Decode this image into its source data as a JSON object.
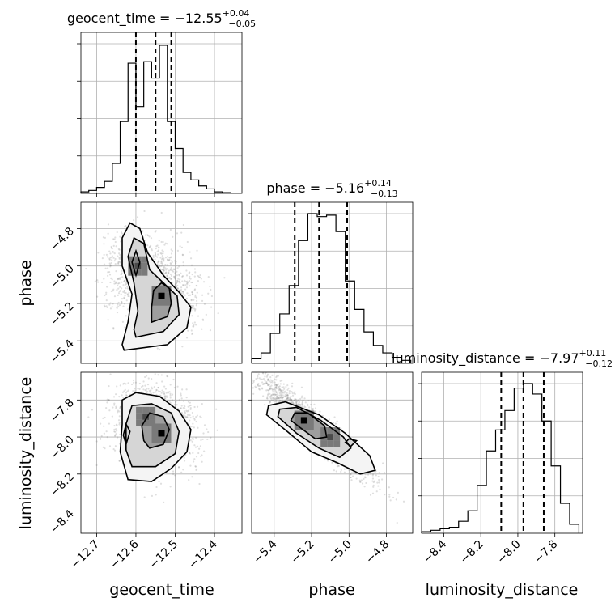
{
  "chart_data": {
    "type": "corner",
    "grid": true,
    "parameters": [
      {
        "name": "geocent_time",
        "xlabel": "geocent_time",
        "range": [
          -12.74,
          -12.33
        ],
        "ticks": [
          -12.7,
          -12.6,
          -12.5,
          -12.4
        ],
        "tick_labels": [
          "−12.7",
          "−12.6",
          "−12.5",
          "−12.4"
        ],
        "title": {
          "main": "geocent_time = −12.55",
          "plus": "+0.04",
          "minus": "−0.05"
        },
        "quantiles": [
          -12.6,
          -12.55,
          -12.51
        ],
        "hist": {
          "edges": [
            -12.74,
            -12.72,
            -12.7,
            -12.68,
            -12.66,
            -12.64,
            -12.62,
            -12.6,
            -12.58,
            -12.56,
            -12.54,
            -12.52,
            -12.5,
            -12.48,
            -12.46,
            -12.44,
            -12.42,
            -12.4,
            -12.38,
            -12.36
          ],
          "counts": [
            0.01,
            0.02,
            0.04,
            0.08,
            0.2,
            0.48,
            0.87,
            0.58,
            0.88,
            0.77,
            0.99,
            0.48,
            0.3,
            0.14,
            0.09,
            0.05,
            0.03,
            0.01,
            0.005
          ]
        }
      },
      {
        "name": "phase",
        "xlabel": "phase",
        "ylabel": "phase",
        "range": [
          -5.52,
          -4.66
        ],
        "ticks": [
          -5.4,
          -5.2,
          -5.0,
          -4.8
        ],
        "tick_labels": [
          "−5.4",
          "−5.2",
          "−5.0",
          "−4.8"
        ],
        "title": {
          "main": "phase = −5.16",
          "plus": "+0.14",
          "minus": "−0.13"
        },
        "quantiles": [
          -5.29,
          -5.16,
          -5.01
        ],
        "hist": {
          "edges": [
            -5.52,
            -5.47,
            -5.42,
            -5.37,
            -5.32,
            -5.27,
            -5.22,
            -5.17,
            -5.12,
            -5.07,
            -5.02,
            -4.97,
            -4.92,
            -4.87,
            -4.82,
            -4.77,
            -4.72,
            -4.67
          ],
          "counts": [
            0.03,
            0.07,
            0.2,
            0.33,
            0.52,
            0.82,
            1.0,
            0.98,
            0.99,
            0.88,
            0.55,
            0.36,
            0.21,
            0.12,
            0.07,
            0.04,
            0.02
          ]
        }
      },
      {
        "name": "luminosity_distance",
        "xlabel": "luminosity_distance",
        "ylabel": "luminosity_distance",
        "range": [
          -8.52,
          -7.65
        ],
        "ticks": [
          -8.4,
          -8.2,
          -8.0,
          -7.8
        ],
        "tick_labels": [
          "−8.4",
          "−8.2",
          "−8.0",
          "−7.8"
        ],
        "title": {
          "main": "luminosity_distance = −7.97",
          "plus": "+0.11",
          "minus": "−0.12"
        },
        "quantiles": [
          -8.09,
          -7.97,
          -7.86
        ],
        "hist": {
          "edges": [
            -8.52,
            -8.47,
            -8.42,
            -8.37,
            -8.32,
            -8.27,
            -8.22,
            -8.17,
            -8.12,
            -8.07,
            -8.02,
            -7.97,
            -7.92,
            -7.87,
            -7.82,
            -7.77,
            -7.72,
            -7.67
          ],
          "counts": [
            0.01,
            0.02,
            0.03,
            0.04,
            0.08,
            0.15,
            0.32,
            0.55,
            0.69,
            0.82,
            0.97,
            1.0,
            0.93,
            0.75,
            0.45,
            0.2,
            0.06
          ]
        }
      }
    ],
    "pairs": [
      {
        "x": "geocent_time",
        "y": "phase",
        "peaks": [
          {
            "x": -12.595,
            "y": -5.0,
            "weight": 0.55
          },
          {
            "x": -12.535,
            "y": -5.16,
            "weight": 1.0
          }
        ],
        "contour_levels": [
          [
            [
              -12.63,
              -5.45
            ],
            [
              -12.52,
              -5.42
            ],
            [
              -12.47,
              -5.33
            ],
            [
              -12.46,
              -5.22
            ],
            [
              -12.49,
              -5.14
            ],
            [
              -12.53,
              -5.05
            ],
            [
              -12.57,
              -4.93
            ],
            [
              -12.59,
              -4.8
            ],
            [
              -12.615,
              -4.77
            ],
            [
              -12.635,
              -4.85
            ],
            [
              -12.635,
              -5.0
            ],
            [
              -12.61,
              -5.15
            ],
            [
              -12.62,
              -5.3
            ],
            [
              -12.635,
              -5.42
            ]
          ],
          [
            [
              -12.6,
              -5.38
            ],
            [
              -12.53,
              -5.35
            ],
            [
              -12.49,
              -5.26
            ],
            [
              -12.495,
              -5.16
            ],
            [
              -12.53,
              -5.09
            ],
            [
              -12.565,
              -5.02
            ],
            [
              -12.58,
              -4.88
            ],
            [
              -12.605,
              -4.85
            ],
            [
              -12.62,
              -4.95
            ],
            [
              -12.605,
              -5.09
            ],
            [
              -12.595,
              -5.24
            ],
            [
              -12.605,
              -5.34
            ]
          ],
          [
            [
              -12.56,
              -5.3
            ],
            [
              -12.52,
              -5.27
            ],
            [
              -12.51,
              -5.2
            ],
            [
              -12.515,
              -5.12
            ],
            [
              -12.535,
              -5.09
            ],
            [
              -12.555,
              -5.13
            ],
            [
              -12.56,
              -5.22
            ]
          ],
          [
            [
              -12.6,
              -5.05
            ],
            [
              -12.59,
              -4.98
            ],
            [
              -12.6,
              -4.92
            ],
            [
              -12.61,
              -4.98
            ]
          ]
        ]
      },
      {
        "x": "geocent_time",
        "y": "luminosity_distance",
        "peaks": [
          {
            "x": -12.575,
            "y": -7.89,
            "weight": 0.8
          },
          {
            "x": -12.535,
            "y": -7.98,
            "weight": 1.0
          }
        ],
        "contour_levels": [
          [
            [
              -12.62,
              -8.23
            ],
            [
              -12.56,
              -8.24
            ],
            [
              -12.51,
              -8.17
            ],
            [
              -12.47,
              -8.08
            ],
            [
              -12.46,
              -7.96
            ],
            [
              -12.49,
              -7.86
            ],
            [
              -12.54,
              -7.78
            ],
            [
              -12.6,
              -7.76
            ],
            [
              -12.635,
              -7.8
            ],
            [
              -12.635,
              -7.93
            ],
            [
              -12.64,
              -8.08
            ]
          ],
          [
            [
              -12.61,
              -8.16
            ],
            [
              -12.55,
              -8.16
            ],
            [
              -12.5,
              -8.09
            ],
            [
              -12.49,
              -7.97
            ],
            [
              -12.51,
              -7.87
            ],
            [
              -12.56,
              -7.82
            ],
            [
              -12.61,
              -7.83
            ],
            [
              -12.625,
              -7.93
            ],
            [
              -12.625,
              -8.07
            ]
          ],
          [
            [
              -12.565,
              -8.06
            ],
            [
              -12.53,
              -8.04
            ],
            [
              -12.515,
              -7.96
            ],
            [
              -12.53,
              -7.89
            ],
            [
              -12.565,
              -7.87
            ],
            [
              -12.585,
              -7.94
            ],
            [
              -12.58,
              -8.02
            ]
          ],
          [
            [
              -12.625,
              -8.04
            ],
            [
              -12.615,
              -7.97
            ],
            [
              -12.625,
              -7.93
            ],
            [
              -12.632,
              -7.99
            ]
          ]
        ]
      },
      {
        "x": "phase",
        "y": "luminosity_distance",
        "peaks": [
          {
            "x": -5.24,
            "y": -7.91,
            "weight": 1.0
          },
          {
            "x": -5.1,
            "y": -8.0,
            "weight": 0.6
          }
        ],
        "contour_levels": [
          [
            [
              -5.43,
              -7.83
            ],
            [
              -5.34,
              -7.81
            ],
            [
              -5.16,
              -7.88
            ],
            [
              -5.02,
              -7.98
            ],
            [
              -4.89,
              -8.1
            ],
            [
              -4.86,
              -8.18
            ],
            [
              -4.94,
              -8.2
            ],
            [
              -5.06,
              -8.14
            ],
            [
              -5.2,
              -8.08
            ],
            [
              -5.33,
              -7.97
            ],
            [
              -5.44,
              -7.88
            ]
          ],
          [
            [
              -5.37,
              -7.85
            ],
            [
              -5.28,
              -7.84
            ],
            [
              -5.15,
              -7.91
            ],
            [
              -5.03,
              -8.0
            ],
            [
              -4.99,
              -8.06
            ],
            [
              -5.05,
              -8.11
            ],
            [
              -5.16,
              -8.06
            ],
            [
              -5.28,
              -7.98
            ],
            [
              -5.38,
              -7.89
            ]
          ],
          [
            [
              -5.29,
              -7.87
            ],
            [
              -5.22,
              -7.87
            ],
            [
              -5.13,
              -7.94
            ],
            [
              -5.12,
              -8.0
            ],
            [
              -5.18,
              -8.01
            ],
            [
              -5.26,
              -7.95
            ],
            [
              -5.31,
              -7.91
            ]
          ],
          [
            [
              -5.0,
              -8.01
            ],
            [
              -4.96,
              -8.02
            ],
            [
              -4.99,
              -8.05
            ],
            [
              -5.02,
              -8.03
            ]
          ]
        ]
      }
    ]
  }
}
